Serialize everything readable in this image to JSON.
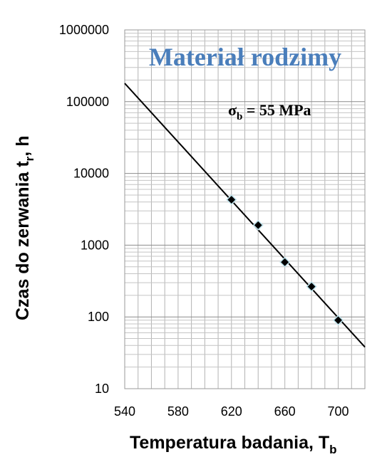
{
  "chart_data": {
    "type": "scatter",
    "title": "Materiał rodzimy",
    "annotation": {
      "symbol": "σ",
      "subscript": "b",
      "text": " = 55 MPa"
    },
    "xlabel": {
      "main": "Temperatura badania, T",
      "subscript": "b"
    },
    "ylabel": {
      "main": "Czas do zerwania t",
      "subscript": "r",
      "suffix": ", h"
    },
    "x_ticks": [
      "540",
      "580",
      "620",
      "660",
      "700"
    ],
    "y_ticks": [
      "10",
      "100",
      "1000",
      "10000",
      "100000",
      "1000000"
    ],
    "xlim": [
      540,
      720
    ],
    "ylim": [
      10,
      1000000
    ],
    "y_scale": "log",
    "grid": true,
    "series": [
      {
        "marker": "diamond",
        "color": "#000000",
        "points": [
          {
            "x": 620,
            "y": 4300
          },
          {
            "x": 640,
            "y": 1900
          },
          {
            "x": 660,
            "y": 580
          },
          {
            "x": 680,
            "y": 265
          },
          {
            "x": 700,
            "y": 90
          }
        ]
      }
    ],
    "trendline": {
      "type": "exponential",
      "color": "#000000",
      "points": [
        {
          "x": 540,
          "y": 180000
        },
        {
          "x": 720,
          "y": 38
        }
      ]
    }
  }
}
